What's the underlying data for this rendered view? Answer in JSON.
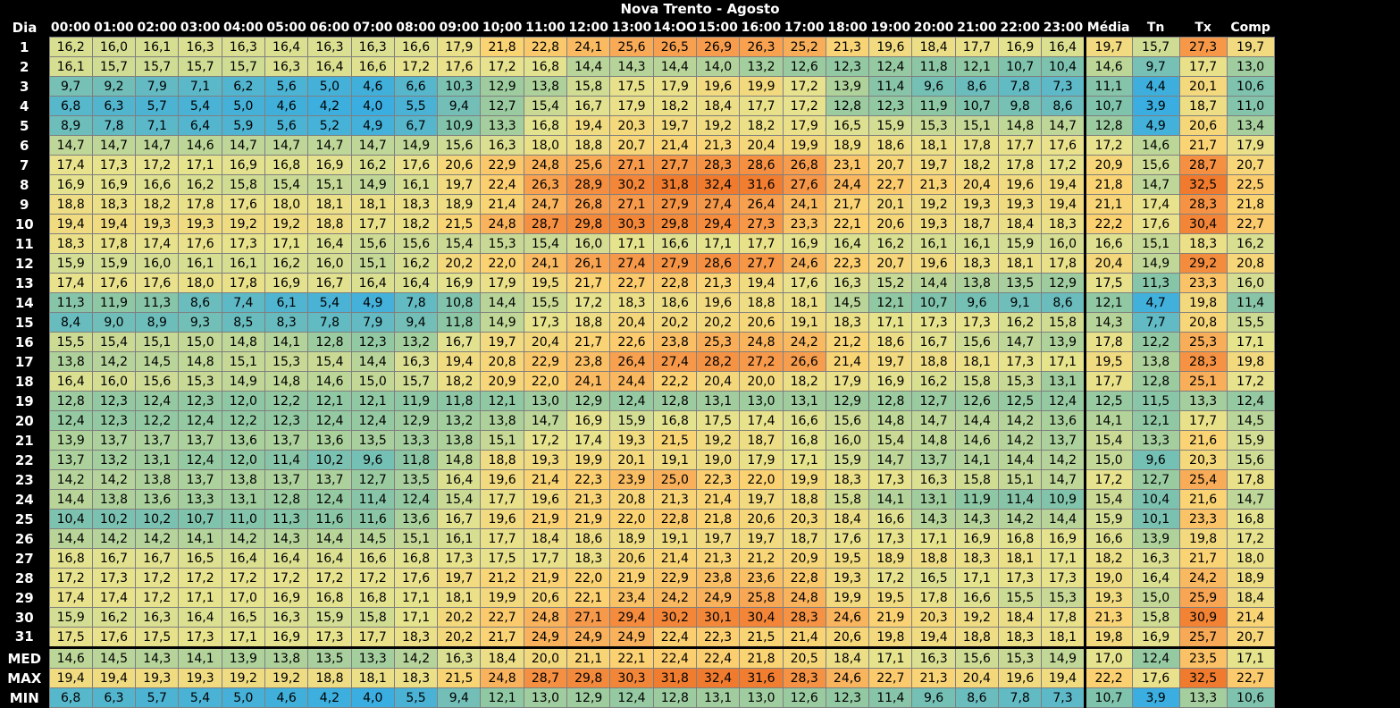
{
  "chart_data": {
    "type": "heatmap",
    "title": "Nova Trento - Agosto",
    "corner_label": "Dia",
    "columns": [
      "00:00",
      "01:00",
      "02:00",
      "03:00",
      "04:00",
      "05:00",
      "06:00",
      "07:00",
      "08:00",
      "09:00",
      "10;00",
      "11:00",
      "12:00",
      "13:00",
      "14:OO",
      "15:00",
      "16:00",
      "17:00",
      "18:00",
      "19:00",
      "20:00",
      "21:00",
      "22:00",
      "23:00",
      "Média",
      "Tn",
      "Tx",
      "Comp"
    ],
    "row_labels": [
      "1",
      "2",
      "3",
      "4",
      "5",
      "6",
      "7",
      "8",
      "9",
      "10",
      "11",
      "12",
      "13",
      "14",
      "15",
      "16",
      "17",
      "18",
      "19",
      "20",
      "21",
      "22",
      "23",
      "24",
      "25",
      "26",
      "27",
      "28",
      "29",
      "30",
      "31"
    ],
    "rows": [
      [
        "16,2",
        "16,0",
        "16,1",
        "16,3",
        "16,3",
        "16,4",
        "16,3",
        "16,3",
        "16,6",
        "17,9",
        "21,8",
        "22,8",
        "24,1",
        "25,6",
        "26,5",
        "26,9",
        "26,3",
        "25,2",
        "21,3",
        "19,6",
        "18,4",
        "17,7",
        "16,9",
        "16,4",
        "19,7",
        "15,7",
        "27,3",
        "19,7"
      ],
      [
        "16,1",
        "15,7",
        "15,7",
        "15,7",
        "15,7",
        "16,3",
        "16,4",
        "16,6",
        "17,2",
        "17,6",
        "17,2",
        "16,8",
        "14,4",
        "14,3",
        "14,4",
        "14,0",
        "13,2",
        "12,6",
        "12,3",
        "12,4",
        "11,8",
        "12,1",
        "10,7",
        "10,4",
        "14,6",
        "9,7",
        "17,7",
        "13,0"
      ],
      [
        "9,7",
        "9,2",
        "7,9",
        "7,1",
        "6,2",
        "5,6",
        "5,0",
        "4,6",
        "6,6",
        "10,3",
        "12,9",
        "13,8",
        "15,8",
        "17,5",
        "17,9",
        "19,6",
        "19,9",
        "17,2",
        "13,9",
        "11,4",
        "9,6",
        "8,6",
        "7,8",
        "7,3",
        "11,1",
        "4,4",
        "20,1",
        "10,6"
      ],
      [
        "6,8",
        "6,3",
        "5,7",
        "5,4",
        "5,0",
        "4,6",
        "4,2",
        "4,0",
        "5,5",
        "9,4",
        "12,7",
        "15,4",
        "16,7",
        "17,9",
        "18,2",
        "18,4",
        "17,7",
        "17,2",
        "12,8",
        "12,3",
        "11,9",
        "10,7",
        "9,8",
        "8,6",
        "10,7",
        "3,9",
        "18,7",
        "11,0"
      ],
      [
        "8,9",
        "7,8",
        "7,1",
        "6,4",
        "5,9",
        "5,6",
        "5,2",
        "4,9",
        "6,7",
        "10,9",
        "13,3",
        "16,8",
        "19,4",
        "20,3",
        "19,7",
        "19,2",
        "18,2",
        "17,9",
        "16,5",
        "15,9",
        "15,3",
        "15,1",
        "14,8",
        "14,7",
        "12,8",
        "4,9",
        "20,6",
        "13,4"
      ],
      [
        "14,7",
        "14,7",
        "14,7",
        "14,6",
        "14,7",
        "14,7",
        "14,7",
        "14,7",
        "14,9",
        "15,6",
        "16,3",
        "18,0",
        "18,8",
        "20,7",
        "21,4",
        "21,3",
        "20,4",
        "19,9",
        "18,9",
        "18,6",
        "18,1",
        "17,8",
        "17,7",
        "17,6",
        "17,2",
        "14,6",
        "21,7",
        "17,9"
      ],
      [
        "17,4",
        "17,3",
        "17,2",
        "17,1",
        "16,9",
        "16,8",
        "16,9",
        "16,2",
        "17,6",
        "20,6",
        "22,9",
        "24,8",
        "25,6",
        "27,1",
        "27,7",
        "28,3",
        "28,6",
        "26,8",
        "23,1",
        "20,7",
        "19,7",
        "18,2",
        "17,8",
        "17,2",
        "20,9",
        "15,6",
        "28,7",
        "20,7"
      ],
      [
        "16,9",
        "16,9",
        "16,6",
        "16,2",
        "15,8",
        "15,4",
        "15,1",
        "14,9",
        "16,1",
        "19,7",
        "22,4",
        "26,3",
        "28,9",
        "30,2",
        "31,8",
        "32,4",
        "31,6",
        "27,6",
        "24,4",
        "22,7",
        "21,3",
        "20,4",
        "19,6",
        "19,4",
        "21,8",
        "14,7",
        "32,5",
        "22,5"
      ],
      [
        "18,8",
        "18,3",
        "18,2",
        "17,8",
        "17,6",
        "18,0",
        "18,1",
        "18,1",
        "18,3",
        "18,9",
        "21,4",
        "24,7",
        "26,8",
        "27,1",
        "27,9",
        "27,4",
        "26,4",
        "24,1",
        "21,7",
        "20,1",
        "19,2",
        "19,3",
        "19,3",
        "19,4",
        "21,1",
        "17,4",
        "28,3",
        "21,8"
      ],
      [
        "19,4",
        "19,4",
        "19,3",
        "19,3",
        "19,2",
        "19,2",
        "18,8",
        "17,7",
        "18,2",
        "21,5",
        "24,8",
        "28,7",
        "29,8",
        "30,3",
        "29,8",
        "29,4",
        "27,3",
        "23,3",
        "22,1",
        "20,6",
        "19,3",
        "18,7",
        "18,4",
        "18,3",
        "22,2",
        "17,6",
        "30,4",
        "22,7"
      ],
      [
        "18,3",
        "17,8",
        "17,4",
        "17,6",
        "17,3",
        "17,1",
        "16,4",
        "15,6",
        "15,6",
        "15,4",
        "15,3",
        "15,4",
        "16,0",
        "17,1",
        "16,6",
        "17,1",
        "17,7",
        "16,9",
        "16,4",
        "16,2",
        "16,1",
        "16,1",
        "15,9",
        "16,0",
        "16,6",
        "15,1",
        "18,3",
        "16,2"
      ],
      [
        "15,9",
        "15,9",
        "16,0",
        "16,1",
        "16,1",
        "16,2",
        "16,0",
        "15,1",
        "16,2",
        "20,2",
        "22,0",
        "24,1",
        "26,1",
        "27,4",
        "27,9",
        "28,6",
        "27,7",
        "24,6",
        "22,3",
        "20,7",
        "19,6",
        "18,3",
        "18,1",
        "17,8",
        "20,4",
        "14,9",
        "29,2",
        "20,8"
      ],
      [
        "17,4",
        "17,6",
        "17,6",
        "18,0",
        "17,8",
        "16,9",
        "16,7",
        "16,4",
        "16,4",
        "16,9",
        "17,9",
        "19,5",
        "21,7",
        "22,7",
        "22,8",
        "21,3",
        "19,4",
        "17,6",
        "16,3",
        "15,2",
        "14,4",
        "13,8",
        "13,5",
        "12,9",
        "17,5",
        "11,3",
        "23,3",
        "16,0"
      ],
      [
        "11,3",
        "11,9",
        "11,3",
        "8,6",
        "7,4",
        "6,1",
        "5,4",
        "4,9",
        "7,8",
        "10,8",
        "14,4",
        "15,5",
        "17,2",
        "18,3",
        "18,6",
        "19,6",
        "18,8",
        "18,1",
        "14,5",
        "12,1",
        "10,7",
        "9,6",
        "9,1",
        "8,6",
        "12,1",
        "4,7",
        "19,8",
        "11,4"
      ],
      [
        "8,4",
        "9,0",
        "8,9",
        "9,3",
        "8,5",
        "8,3",
        "7,8",
        "7,9",
        "9,4",
        "11,8",
        "14,9",
        "17,3",
        "18,8",
        "20,4",
        "20,2",
        "20,2",
        "20,6",
        "19,1",
        "18,3",
        "17,1",
        "17,3",
        "17,3",
        "16,2",
        "15,8",
        "14,3",
        "7,7",
        "20,8",
        "15,5"
      ],
      [
        "15,5",
        "15,4",
        "15,1",
        "15,0",
        "14,8",
        "14,1",
        "12,8",
        "12,3",
        "13,2",
        "16,7",
        "19,7",
        "20,4",
        "21,7",
        "22,6",
        "23,8",
        "25,3",
        "24,8",
        "24,2",
        "21,2",
        "18,6",
        "16,7",
        "15,6",
        "14,7",
        "13,9",
        "17,8",
        "12,2",
        "25,3",
        "17,1"
      ],
      [
        "13,8",
        "14,2",
        "14,5",
        "14,8",
        "15,1",
        "15,3",
        "15,4",
        "14,4",
        "16,3",
        "19,4",
        "20,8",
        "22,9",
        "23,8",
        "26,4",
        "27,4",
        "28,2",
        "27,2",
        "26,6",
        "21,4",
        "19,7",
        "18,8",
        "18,1",
        "17,3",
        "17,1",
        "19,5",
        "13,8",
        "28,3",
        "19,8"
      ],
      [
        "16,4",
        "16,0",
        "15,6",
        "15,3",
        "14,9",
        "14,8",
        "14,6",
        "15,0",
        "15,7",
        "18,2",
        "20,9",
        "22,0",
        "24,1",
        "24,4",
        "22,2",
        "20,4",
        "20,0",
        "18,2",
        "17,9",
        "16,9",
        "16,2",
        "15,8",
        "15,3",
        "13,1",
        "17,7",
        "12,8",
        "25,1",
        "17,2"
      ],
      [
        "12,8",
        "12,3",
        "12,4",
        "12,3",
        "12,0",
        "12,2",
        "12,1",
        "12,1",
        "11,9",
        "11,8",
        "12,1",
        "13,0",
        "12,9",
        "12,4",
        "12,8",
        "13,1",
        "13,0",
        "13,1",
        "12,9",
        "12,8",
        "12,7",
        "12,6",
        "12,5",
        "12,4",
        "12,5",
        "11,5",
        "13,3",
        "12,4"
      ],
      [
        "12,4",
        "12,3",
        "12,2",
        "12,4",
        "12,2",
        "12,3",
        "12,4",
        "12,4",
        "12,9",
        "13,2",
        "13,8",
        "14,7",
        "16,9",
        "15,9",
        "16,8",
        "17,5",
        "17,4",
        "16,6",
        "15,6",
        "14,8",
        "14,7",
        "14,4",
        "14,2",
        "13,6",
        "14,1",
        "12,1",
        "17,7",
        "14,5"
      ],
      [
        "13,9",
        "13,7",
        "13,7",
        "13,7",
        "13,6",
        "13,7",
        "13,6",
        "13,5",
        "13,3",
        "13,8",
        "15,1",
        "17,2",
        "17,4",
        "19,3",
        "21,5",
        "19,2",
        "18,7",
        "16,8",
        "16,0",
        "15,4",
        "14,8",
        "14,6",
        "14,2",
        "13,7",
        "15,4",
        "13,3",
        "21,6",
        "15,9"
      ],
      [
        "13,7",
        "13,2",
        "13,1",
        "12,4",
        "12,0",
        "11,4",
        "10,2",
        "9,6",
        "11,8",
        "14,8",
        "18,8",
        "19,3",
        "19,9",
        "20,1",
        "19,1",
        "19,0",
        "17,9",
        "17,1",
        "15,9",
        "14,7",
        "13,7",
        "14,1",
        "14,4",
        "14,2",
        "15,0",
        "9,6",
        "20,3",
        "15,6"
      ],
      [
        "14,2",
        "14,2",
        "13,8",
        "13,7",
        "13,8",
        "13,7",
        "13,7",
        "12,7",
        "13,5",
        "16,4",
        "19,6",
        "21,4",
        "22,3",
        "23,9",
        "25,0",
        "22,3",
        "22,0",
        "19,9",
        "18,3",
        "17,3",
        "16,3",
        "15,8",
        "15,1",
        "14,7",
        "17,2",
        "12,7",
        "25,4",
        "17,8"
      ],
      [
        "14,4",
        "13,8",
        "13,6",
        "13,3",
        "13,1",
        "12,8",
        "12,4",
        "11,4",
        "12,4",
        "15,4",
        "17,7",
        "19,6",
        "21,3",
        "20,8",
        "21,3",
        "21,4",
        "19,7",
        "18,8",
        "15,8",
        "14,1",
        "13,1",
        "11,9",
        "11,4",
        "10,9",
        "15,4",
        "10,4",
        "21,6",
        "14,7"
      ],
      [
        "10,4",
        "10,2",
        "10,2",
        "10,7",
        "11,0",
        "11,3",
        "11,6",
        "11,6",
        "13,6",
        "16,7",
        "19,6",
        "21,9",
        "21,9",
        "22,0",
        "22,8",
        "21,8",
        "20,6",
        "20,3",
        "18,4",
        "16,6",
        "14,3",
        "14,3",
        "14,2",
        "14,4",
        "15,9",
        "10,1",
        "23,3",
        "16,8"
      ],
      [
        "14,4",
        "14,2",
        "14,2",
        "14,1",
        "14,2",
        "14,3",
        "14,4",
        "14,5",
        "15,1",
        "16,1",
        "17,7",
        "18,4",
        "18,6",
        "18,9",
        "19,1",
        "19,7",
        "19,7",
        "18,7",
        "17,6",
        "17,3",
        "17,1",
        "16,9",
        "16,8",
        "16,9",
        "16,6",
        "13,9",
        "19,8",
        "17,2"
      ],
      [
        "16,8",
        "16,7",
        "16,7",
        "16,5",
        "16,4",
        "16,4",
        "16,4",
        "16,6",
        "16,8",
        "17,3",
        "17,5",
        "17,7",
        "18,3",
        "20,6",
        "21,4",
        "21,3",
        "21,2",
        "20,9",
        "19,5",
        "18,9",
        "18,8",
        "18,3",
        "18,1",
        "17,1",
        "18,2",
        "16,3",
        "21,7",
        "18,0"
      ],
      [
        "17,2",
        "17,3",
        "17,2",
        "17,2",
        "17,2",
        "17,2",
        "17,2",
        "17,2",
        "17,6",
        "19,7",
        "21,2",
        "21,9",
        "22,0",
        "21,9",
        "22,9",
        "23,8",
        "23,6",
        "22,8",
        "19,3",
        "17,2",
        "16,5",
        "17,1",
        "17,3",
        "17,3",
        "19,0",
        "16,4",
        "24,2",
        "18,9"
      ],
      [
        "17,4",
        "17,4",
        "17,2",
        "17,1",
        "17,0",
        "16,9",
        "16,8",
        "16,8",
        "17,1",
        "18,1",
        "19,9",
        "20,6",
        "22,1",
        "23,4",
        "24,2",
        "24,9",
        "25,8",
        "24,8",
        "19,9",
        "19,5",
        "17,8",
        "16,6",
        "15,5",
        "15,3",
        "19,3",
        "15,0",
        "25,9",
        "18,4"
      ],
      [
        "15,9",
        "16,2",
        "16,3",
        "16,4",
        "16,5",
        "16,3",
        "15,9",
        "15,8",
        "17,1",
        "20,2",
        "22,7",
        "24,8",
        "27,1",
        "29,4",
        "30,2",
        "30,1",
        "30,4",
        "28,3",
        "24,6",
        "21,9",
        "20,3",
        "19,2",
        "18,4",
        "17,8",
        "21,3",
        "15,8",
        "30,9",
        "21,4"
      ],
      [
        "17,5",
        "17,6",
        "17,5",
        "17,3",
        "17,1",
        "16,9",
        "17,3",
        "17,7",
        "18,3",
        "20,2",
        "21,7",
        "24,9",
        "24,9",
        "24,9",
        "22,4",
        "22,3",
        "21,5",
        "21,4",
        "20,6",
        "19,8",
        "19,4",
        "18,8",
        "18,3",
        "18,1",
        "19,8",
        "16,9",
        "25,7",
        "20,7"
      ]
    ],
    "summary_labels": [
      "MED",
      "MAX",
      "MIN"
    ],
    "summary_rows": [
      [
        "14,6",
        "14,5",
        "14,3",
        "14,1",
        "13,9",
        "13,8",
        "13,5",
        "13,3",
        "14,2",
        "16,3",
        "18,4",
        "20,0",
        "21,1",
        "22,1",
        "22,4",
        "22,4",
        "21,8",
        "20,5",
        "18,4",
        "17,1",
        "16,3",
        "15,6",
        "15,3",
        "14,9",
        "17,0",
        "12,4",
        "23,5",
        "17,1"
      ],
      [
        "19,4",
        "19,4",
        "19,3",
        "19,3",
        "19,2",
        "19,2",
        "18,8",
        "18,1",
        "18,3",
        "21,5",
        "24,8",
        "28,7",
        "29,8",
        "30,3",
        "31,8",
        "32,4",
        "31,6",
        "28,3",
        "24,6",
        "22,7",
        "21,3",
        "20,4",
        "19,6",
        "19,4",
        "22,2",
        "17,6",
        "32,5",
        "22,7"
      ],
      [
        "6,8",
        "6,3",
        "5,7",
        "5,4",
        "5,0",
        "4,6",
        "4,2",
        "4,0",
        "5,5",
        "9,4",
        "12,1",
        "13,0",
        "12,9",
        "12,4",
        "12,8",
        "13,1",
        "13,0",
        "12,6",
        "12,3",
        "11,4",
        "9,6",
        "8,6",
        "7,8",
        "7,3",
        "10,7",
        "3,9",
        "13,3",
        "10,6"
      ]
    ],
    "color_scale": {
      "stops": [
        {
          "value": 4,
          "color": "#3aaee0"
        },
        {
          "value": 12,
          "color": "#8ec7a3"
        },
        {
          "value": 17,
          "color": "#e6e38e"
        },
        {
          "value": 22,
          "color": "#fbd272"
        },
        {
          "value": 27,
          "color": "#f79a4b"
        },
        {
          "value": 32,
          "color": "#f07b2e"
        }
      ]
    }
  }
}
